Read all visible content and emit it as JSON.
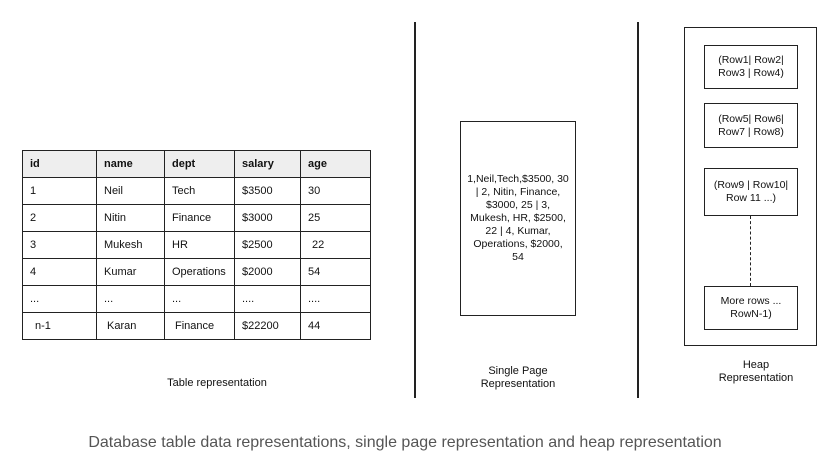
{
  "table": {
    "headers": [
      "id",
      "name",
      "dept",
      "salary",
      "age"
    ],
    "rows": [
      [
        "1",
        "Neil",
        "Tech",
        "$3500",
        "30"
      ],
      [
        "2",
        "Nitin",
        "Finance",
        "$3000",
        "25"
      ],
      [
        "3",
        "Mukesh",
        "HR",
        "$2500",
        "22"
      ],
      [
        "4",
        "Kumar",
        "Operations",
        "$2000",
        "54"
      ],
      [
        "...",
        "...",
        "...",
        "....",
        "...."
      ],
      [
        "n-1",
        "Karan",
        "Finance",
        "$22200",
        "44"
      ]
    ],
    "caption": "Table representation"
  },
  "single_page": {
    "content": "1,Neil,Tech,$3500, 30 | 2, Nitin, Finance, $3000, 25 | 3, Mukesh, HR, $2500, 22 | 4, Kumar, Operations, $2000, 54",
    "caption_line1": "Single Page",
    "caption_line2": "Representation"
  },
  "heap": {
    "blocks": [
      "(Row1| Row2| Row3 | Row4)",
      "(Row5| Row6| Row7 | Row8)",
      "(Row9 | Row10| Row 11 ...)",
      "More rows ... RowN-1)"
    ],
    "caption_line1": "Heap",
    "caption_line2": "Representation"
  },
  "figure_caption": "Database table data representations, single page representation and heap representation"
}
